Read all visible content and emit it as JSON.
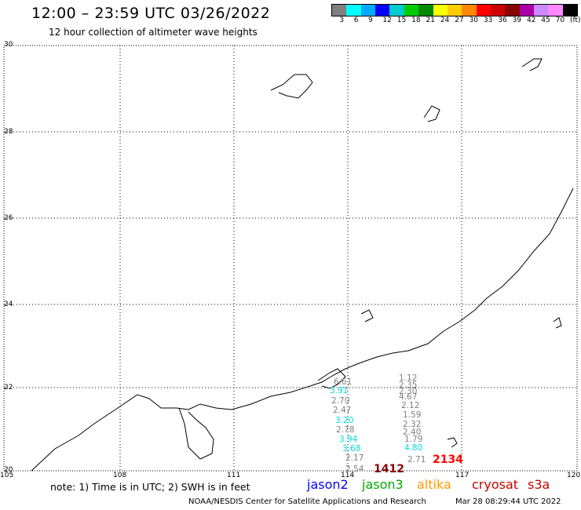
{
  "header": {
    "title": "12:00 – 23:59 UTC 03/26/2022",
    "subtitle": "12 hour collection of altimeter wave heights"
  },
  "legend": {
    "colors": [
      "#808080",
      "#00ffff",
      "#00aaff",
      "#0000ff",
      "#00cccc",
      "#00cc00",
      "#008800",
      "#ffff00",
      "#ffcc00",
      "#ff8800",
      "#ff0000",
      "#cc0000",
      "#880000",
      "#aa00aa",
      "#cc88ff",
      "#ff88ff",
      "#000000"
    ],
    "labels": [
      "3",
      "6",
      "9",
      "12",
      "15",
      "18",
      "21",
      "24",
      "27",
      "30",
      "33",
      "36",
      "39",
      "42",
      "45",
      "70",
      "(ft)"
    ]
  },
  "axes": {
    "lat_labels": [
      "30",
      "28",
      "26",
      "24",
      "22",
      "20"
    ],
    "lon_labels": [
      "105",
      "108",
      "111",
      "114",
      "117",
      "120"
    ]
  },
  "observations": [
    {
      "text": "1.12",
      "color": "#808080"
    },
    {
      "text": "2.35",
      "color": "#808080"
    },
    {
      "text": "2.30",
      "color": "#808080"
    },
    {
      "text": "4.67",
      "color": "#808080"
    },
    {
      "text": "2.12",
      "color": "#808080"
    },
    {
      "text": "1.59",
      "color": "#808080"
    },
    {
      "text": "2.32",
      "color": "#808080"
    },
    {
      "text": "2.40",
      "color": "#808080"
    },
    {
      "text": "1.79",
      "color": "#808080"
    },
    {
      "text": "4.80",
      "color": "#00dddd"
    },
    {
      "text": "2.71",
      "color": "#808080"
    },
    {
      "text": "6.61",
      "color": "#808080"
    },
    {
      "text": "3.91",
      "color": "#00dddd"
    },
    {
      "text": "2.70",
      "color": "#808080"
    },
    {
      "text": "2.47",
      "color": "#808080"
    },
    {
      "text": "3.20",
      "color": "#00dddd"
    },
    {
      "text": "2.78",
      "color": "#808080"
    },
    {
      "text": "3.94",
      "color": "#00dddd"
    },
    {
      "text": "3.68",
      "color": "#00dddd"
    },
    {
      "text": "2.17",
      "color": "#808080"
    },
    {
      "text": "2.54",
      "color": "#808080"
    },
    {
      "text": "1412",
      "color": "#880000"
    },
    {
      "text": "2134",
      "color": "#ff0000"
    }
  ],
  "footer": {
    "note": "note: 1) Time is in UTC; 2) SWH is in feet",
    "satellites": [
      {
        "name": "jason2",
        "color": "#0000ff"
      },
      {
        "name": "jason3",
        "color": "#00aa00"
      },
      {
        "name": "altika",
        "color": "#ff9900"
      },
      {
        "name": "cryosat",
        "color": "#cc0000"
      },
      {
        "name": "s3a",
        "color": "#cc0000"
      }
    ],
    "credit": "NOAA/NESDIS Center for Satellite Applications and Research",
    "timestamp": "Mar 28 08:29:44 UTC 2022"
  }
}
